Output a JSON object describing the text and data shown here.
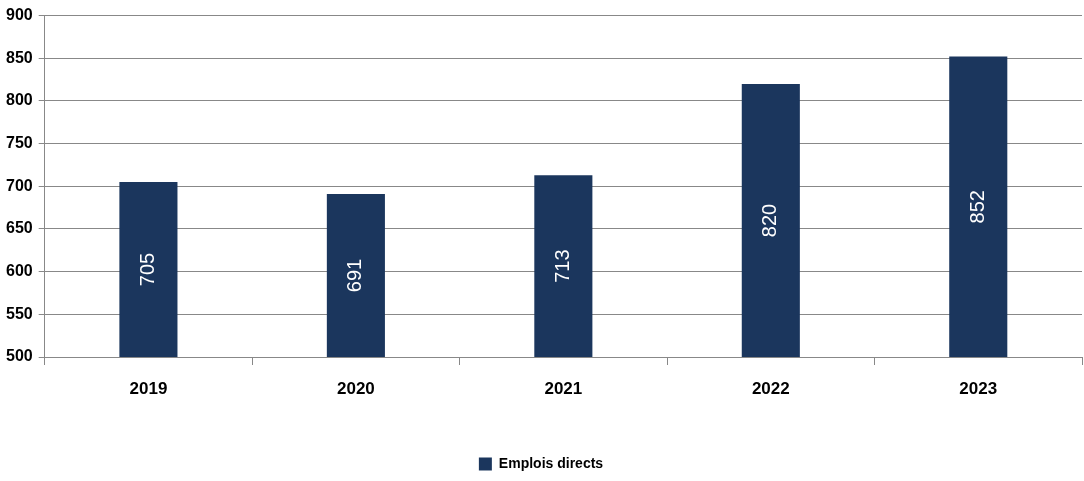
{
  "chart_data": {
    "type": "bar",
    "categories": [
      "2019",
      "2020",
      "2021",
      "2022",
      "2023"
    ],
    "series": [
      {
        "name": "Emplois directs",
        "color": "#1b365d",
        "values": [
          705,
          691,
          713,
          820,
          852
        ]
      }
    ],
    "ylim": [
      500,
      900
    ],
    "yticks": [
      500,
      550,
      600,
      650,
      700,
      750,
      800,
      850,
      900
    ],
    "grid": "y",
    "legend": "bottom",
    "data_labels": true
  }
}
